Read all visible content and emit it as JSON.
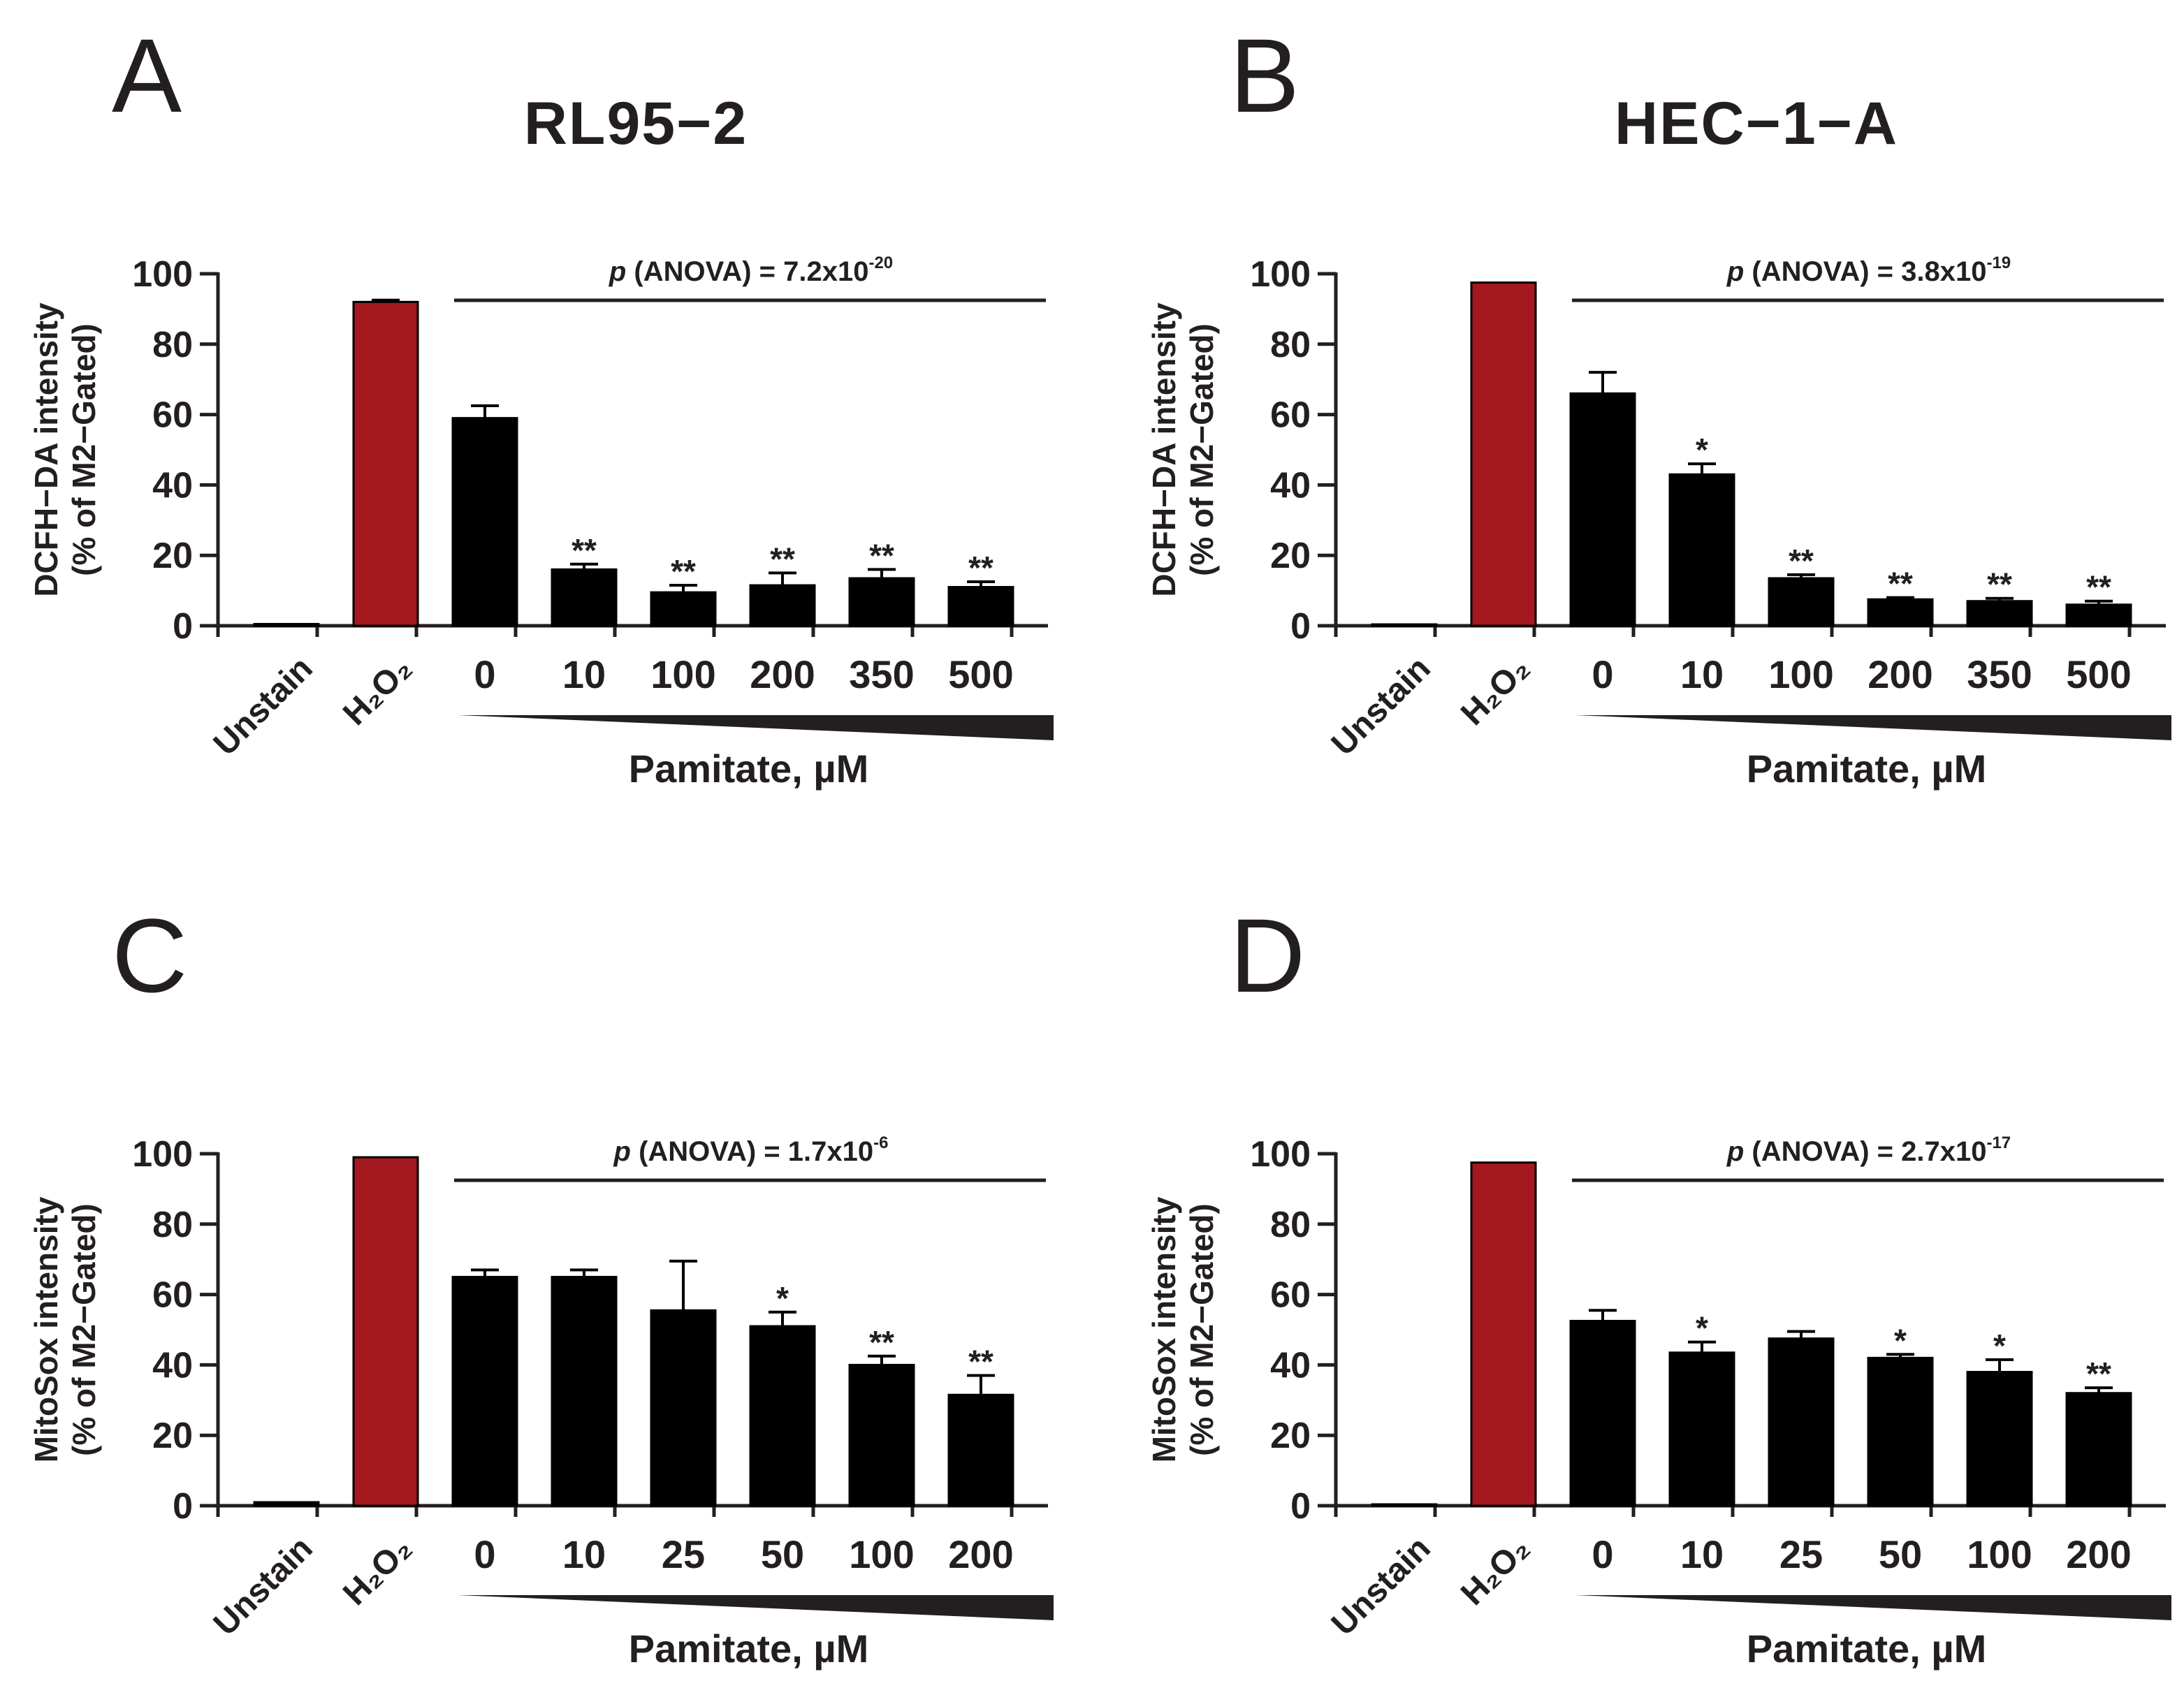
{
  "cell_titles": {
    "left": "RL95−2",
    "right": "HEC−1−A"
  },
  "colors": {
    "control_bar": "#a3191f",
    "treatment_bar": "#000000",
    "axis": "#231f20"
  },
  "chart_data": [
    {
      "panel": "A",
      "type": "bar",
      "title": "",
      "ylabel_line1": "DCFH−DA intensity",
      "ylabel_line2": "(% of M2−Gated)",
      "xlabel": "Pamitate, µM",
      "ylim": [
        0,
        100
      ],
      "yticks": [
        "0",
        "20",
        "40",
        "60",
        "80",
        "100"
      ],
      "anova_prefix": "p",
      "anova_text": " (ANOVA) = 7.2x10",
      "anova_exp": "-20",
      "categories": [
        "Unstain",
        "H₂O₂",
        "0",
        "10",
        "100",
        "200",
        "350",
        "500"
      ],
      "values": [
        0.5,
        92,
        59,
        16,
        9.5,
        11.5,
        13.5,
        11
      ],
      "errors": [
        0,
        0.5,
        3.5,
        1.5,
        2,
        3.5,
        2.5,
        1.5
      ],
      "bar_color_keys": [
        "treatment_bar",
        "control_bar",
        "treatment_bar",
        "treatment_bar",
        "treatment_bar",
        "treatment_bar",
        "treatment_bar",
        "treatment_bar"
      ],
      "significance": [
        "",
        "",
        "",
        "**",
        "**",
        "**",
        "**",
        "**"
      ]
    },
    {
      "panel": "B",
      "type": "bar",
      "title": "",
      "ylabel_line1": "DCFH−DA intensity",
      "ylabel_line2": "(% of M2−Gated)",
      "xlabel": "Pamitate, µM",
      "ylim": [
        0,
        100
      ],
      "yticks": [
        "0",
        "20",
        "40",
        "60",
        "80",
        "100"
      ],
      "anova_prefix": "p",
      "anova_text": " (ANOVA) = 3.8x10",
      "anova_exp": "-19",
      "categories": [
        "Unstain",
        "H₂O₂",
        "0",
        "10",
        "100",
        "200",
        "350",
        "500"
      ],
      "values": [
        0.2,
        97.5,
        66,
        43,
        13.5,
        7.5,
        7,
        6
      ],
      "errors": [
        0,
        0,
        6,
        3,
        1,
        0.5,
        0.8,
        1
      ],
      "bar_color_keys": [
        "treatment_bar",
        "control_bar",
        "treatment_bar",
        "treatment_bar",
        "treatment_bar",
        "treatment_bar",
        "treatment_bar",
        "treatment_bar"
      ],
      "significance": [
        "",
        "",
        "",
        "*",
        "**",
        "**",
        "**",
        "**"
      ]
    },
    {
      "panel": "C",
      "type": "bar",
      "title": "",
      "ylabel_line1": "MitoSox intensity",
      "ylabel_line2": "(% of M2−Gated)",
      "xlabel": "Pamitate, µM",
      "ylim": [
        0,
        100
      ],
      "yticks": [
        "0",
        "20",
        "40",
        "60",
        "80",
        "100"
      ],
      "anova_prefix": "p",
      "anova_text": " (ANOVA) = 1.7x10",
      "anova_exp": "-6",
      "categories": [
        "Unstain",
        "H₂O₂",
        "0",
        "10",
        "25",
        "50",
        "100",
        "200"
      ],
      "values": [
        1,
        99,
        65,
        65,
        55.5,
        51,
        40,
        31.5
      ],
      "errors": [
        0,
        0,
        2,
        2,
        14,
        4,
        2.5,
        5.5
      ],
      "bar_color_keys": [
        "treatment_bar",
        "control_bar",
        "treatment_bar",
        "treatment_bar",
        "treatment_bar",
        "treatment_bar",
        "treatment_bar",
        "treatment_bar"
      ],
      "significance": [
        "",
        "",
        "",
        "",
        "",
        "*",
        "**",
        "**"
      ]
    },
    {
      "panel": "D",
      "type": "bar",
      "title": "",
      "ylabel_line1": "MitoSox intensity",
      "ylabel_line2": "(% of M2−Gated)",
      "xlabel": "Pamitate, µM",
      "ylim": [
        0,
        100
      ],
      "yticks": [
        "0",
        "20",
        "40",
        "60",
        "80",
        "100"
      ],
      "anova_prefix": "p",
      "anova_text": " (ANOVA) = 2.7x10",
      "anova_exp": "-17",
      "categories": [
        "Unstain",
        "H₂O₂",
        "0",
        "10",
        "25",
        "50",
        "100",
        "200"
      ],
      "values": [
        0.3,
        97.5,
        52.5,
        43.5,
        47.5,
        42,
        38,
        32
      ],
      "errors": [
        0,
        0,
        3,
        3,
        2,
        1,
        3.5,
        1.5
      ],
      "bar_color_keys": [
        "treatment_bar",
        "control_bar",
        "treatment_bar",
        "treatment_bar",
        "treatment_bar",
        "treatment_bar",
        "treatment_bar",
        "treatment_bar"
      ],
      "significance": [
        "",
        "",
        "",
        "*",
        "",
        "*",
        "*",
        "**"
      ]
    }
  ]
}
